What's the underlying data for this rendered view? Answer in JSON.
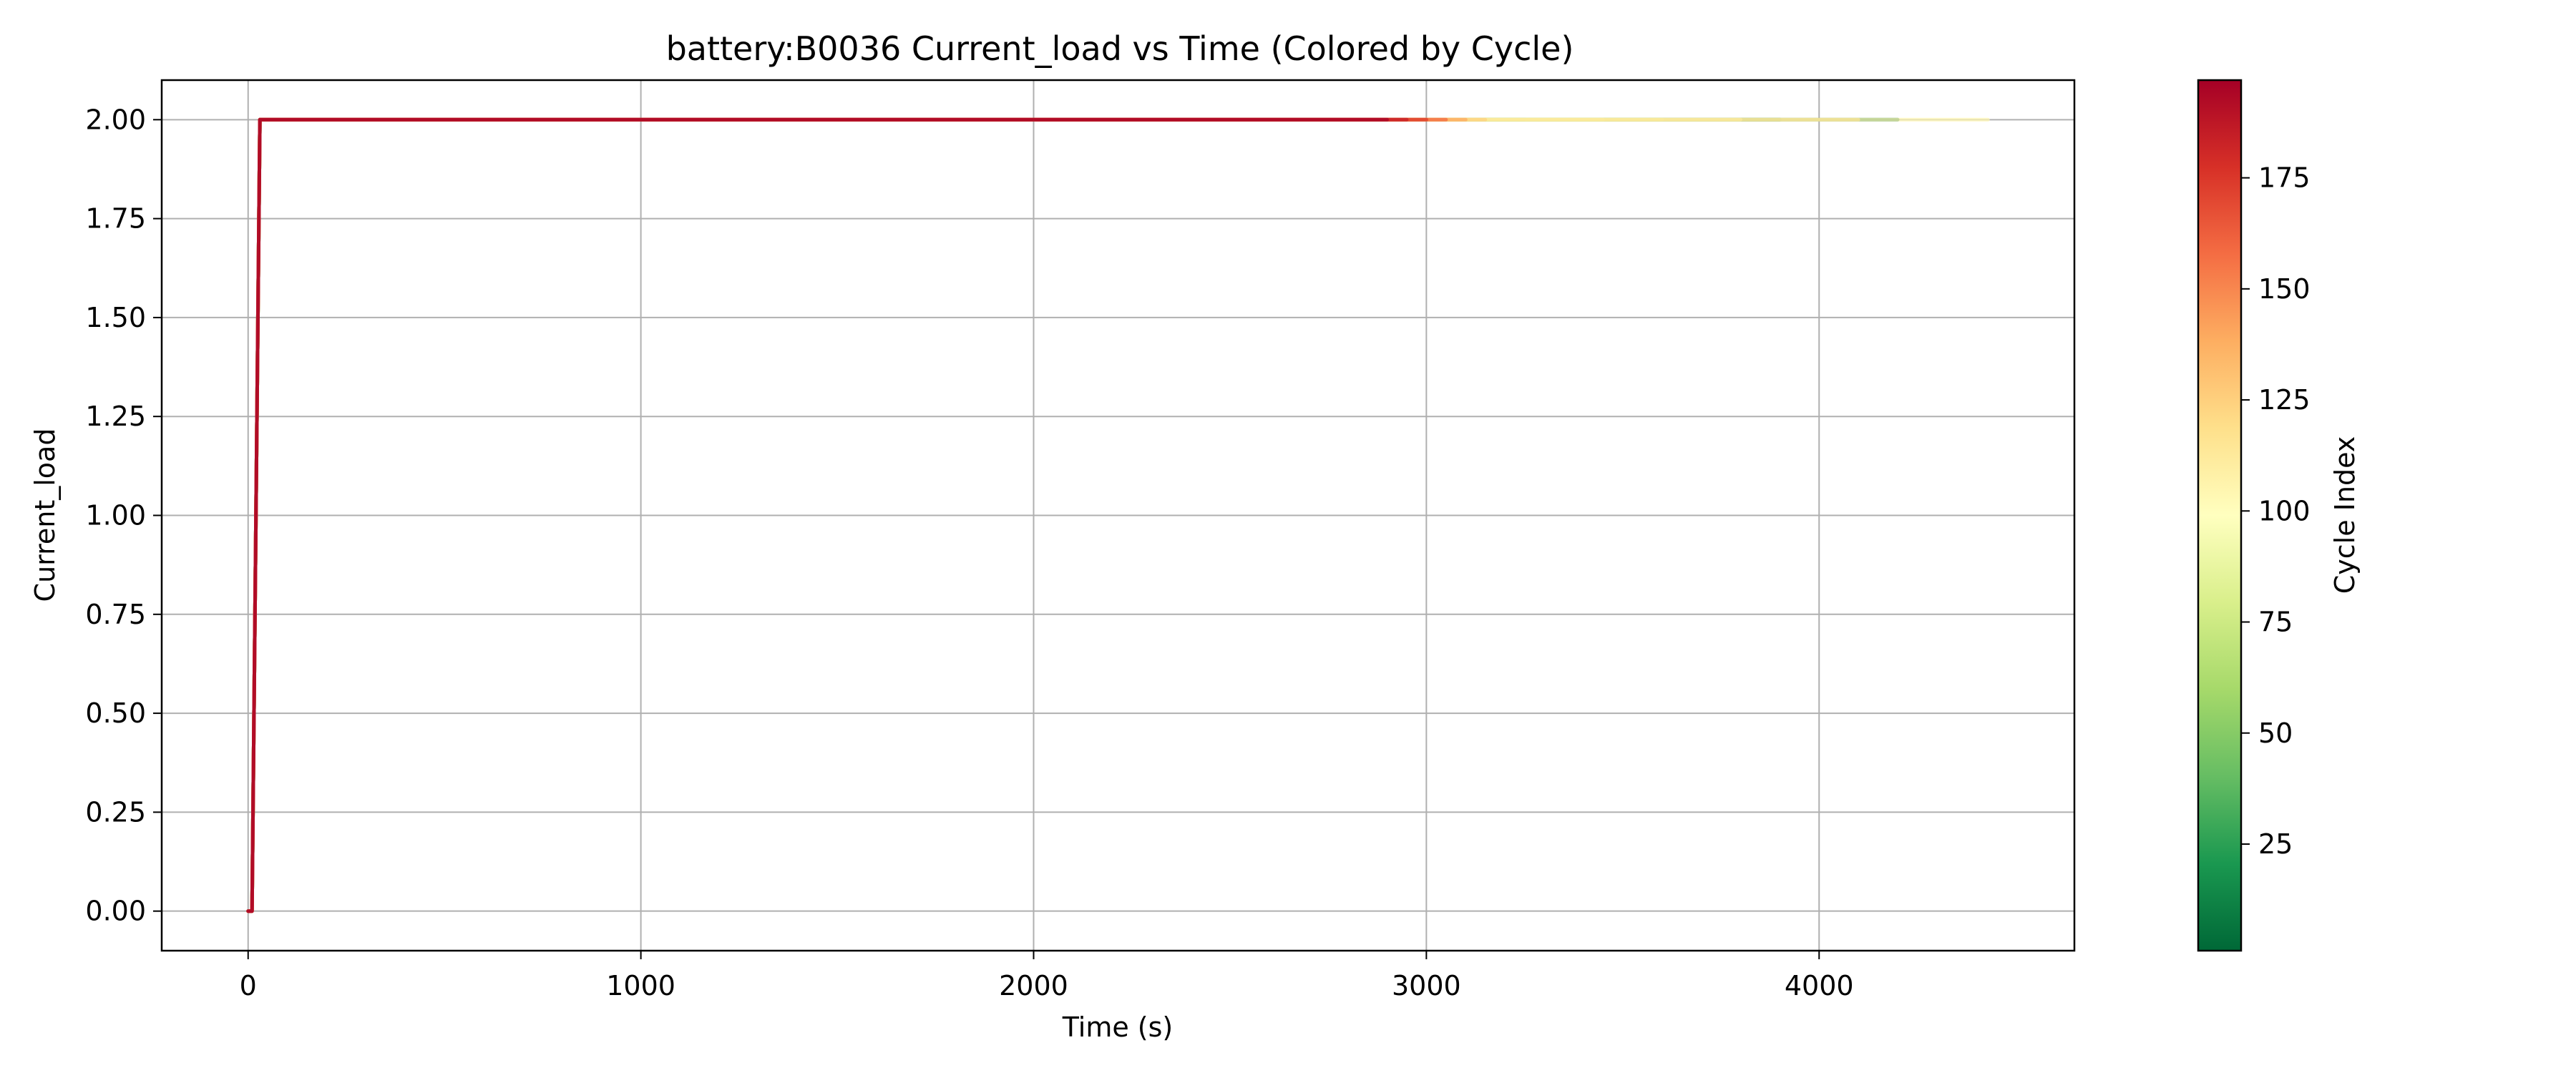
{
  "chart_data": {
    "type": "line",
    "title": "battery:B0036 Current_load vs Time (Colored by Cycle)",
    "xlabel": "Time (s)",
    "ylabel": "Current_load",
    "xlim": [
      -220,
      4650
    ],
    "ylim": [
      -0.1,
      2.1
    ],
    "xticks": [
      0,
      1000,
      2000,
      3000,
      4000
    ],
    "xtick_labels": [
      "0",
      "1000",
      "2000",
      "3000",
      "4000"
    ],
    "yticks": [
      0.0,
      0.25,
      0.5,
      0.75,
      1.0,
      1.25,
      1.5,
      1.75,
      2.0
    ],
    "ytick_labels": [
      "0.00",
      "0.25",
      "0.50",
      "0.75",
      "1.00",
      "1.25",
      "1.50",
      "1.75",
      "2.00"
    ],
    "grid": true,
    "colorbar": {
      "label": "Cycle Index",
      "range": [
        1,
        197
      ],
      "ticks": [
        25,
        50,
        75,
        100,
        125,
        150,
        175
      ],
      "tick_labels": [
        "25",
        "50",
        "75",
        "100",
        "125",
        "150",
        "175"
      ],
      "colormap": "RdYlGn_r",
      "colormap_stops": [
        "#006837",
        "#1a9850",
        "#66bd63",
        "#a6d96a",
        "#d9ef8b",
        "#ffffbf",
        "#fee08b",
        "#fdae61",
        "#f46d43",
        "#d73027",
        "#a50026"
      ]
    },
    "series": [
      {
        "cycle": 1,
        "x": [
          0,
          10,
          30,
          4200
        ],
        "y": [
          0,
          0,
          2.0,
          2.0
        ]
      },
      {
        "cycle": 5,
        "x": [
          0,
          10,
          30,
          3900
        ],
        "y": [
          0,
          0,
          2.0,
          2.0
        ]
      },
      {
        "cycle": 12,
        "x": [
          0,
          10,
          30,
          3150
        ],
        "y": [
          0,
          0,
          2.0,
          2.0
        ]
      },
      {
        "cycle": 20,
        "x": [
          0,
          10,
          30,
          3250
        ],
        "y": [
          0,
          0,
          2.0,
          2.0
        ]
      },
      {
        "cycle": 35,
        "x": [
          0,
          10,
          30,
          3280
        ],
        "y": [
          0,
          0,
          2.0,
          2.0
        ]
      },
      {
        "cycle": 55,
        "x": [
          0,
          10,
          30,
          3600
        ],
        "y": [
          0,
          0,
          2.0,
          2.0
        ]
      },
      {
        "cycle": 70,
        "x": [
          0,
          10,
          30,
          3450
        ],
        "y": [
          0,
          0,
          2.0,
          2.0
        ]
      },
      {
        "cycle": 90,
        "x": [
          0,
          10,
          30,
          3800
        ],
        "y": [
          0,
          0,
          2.0,
          2.0
        ]
      },
      {
        "cycle": 105,
        "x": [
          0,
          10,
          30,
          4430
        ],
        "y": [
          0,
          0,
          2.0,
          2.0
        ]
      },
      {
        "cycle": 115,
        "x": [
          0,
          10,
          30,
          4100
        ],
        "y": [
          0,
          0,
          2.0,
          2.0
        ]
      },
      {
        "cycle": 125,
        "x": [
          0,
          10,
          30,
          3150
        ],
        "y": [
          0,
          0,
          2.0,
          2.0
        ]
      },
      {
        "cycle": 140,
        "x": [
          0,
          10,
          30,
          3100
        ],
        "y": [
          0,
          0,
          2.0,
          2.0
        ]
      },
      {
        "cycle": 160,
        "x": [
          0,
          10,
          30,
          3050
        ],
        "y": [
          0,
          0,
          2.0,
          2.0
        ]
      },
      {
        "cycle": 175,
        "x": [
          0,
          10,
          30,
          3000
        ],
        "y": [
          0,
          0,
          2.0,
          2.0
        ]
      },
      {
        "cycle": 185,
        "x": [
          0,
          10,
          30,
          2950
        ],
        "y": [
          0,
          0,
          2.0,
          2.0
        ]
      },
      {
        "cycle": 197,
        "x": [
          0,
          10,
          30,
          2900
        ],
        "y": [
          0,
          0,
          2.0,
          2.0
        ]
      }
    ]
  }
}
